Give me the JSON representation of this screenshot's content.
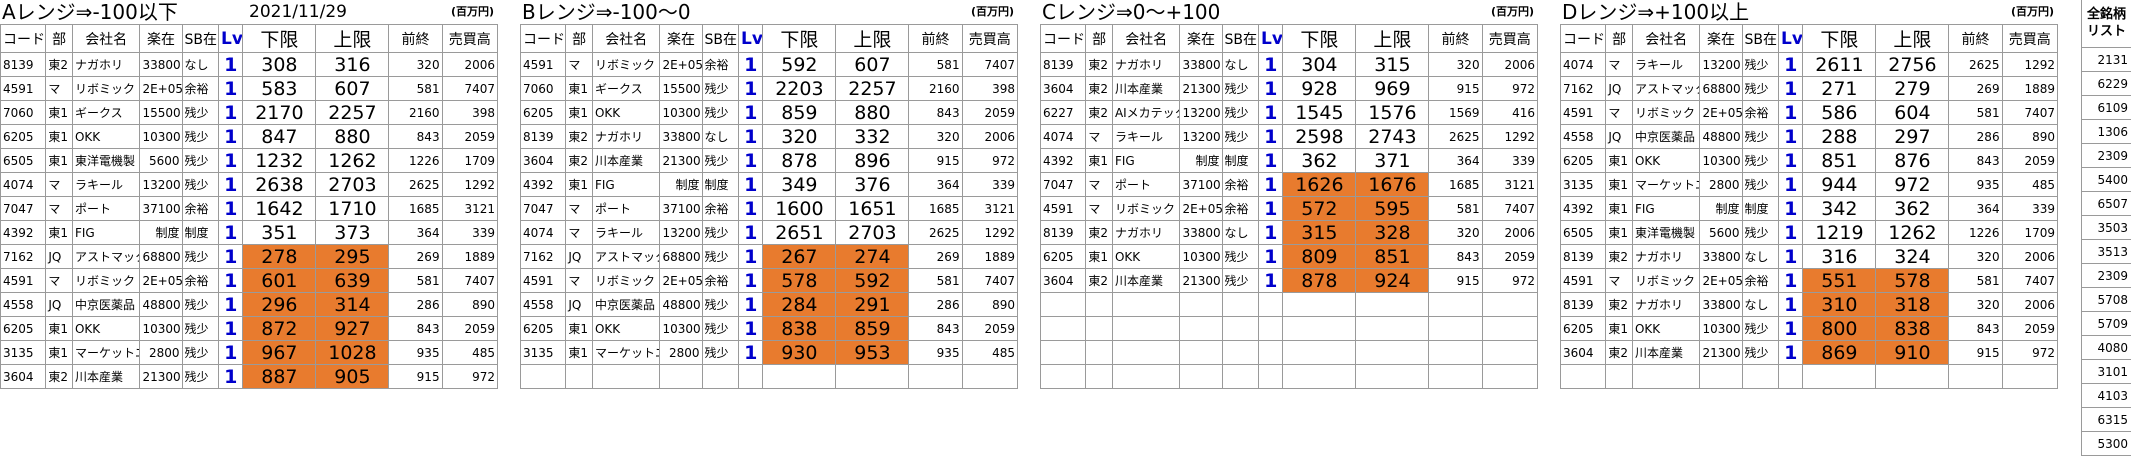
{
  "date": "2021/11/29",
  "unit_label": "(百万円)",
  "sidebar": {
    "header": "全銘柄リスト",
    "values": [
      "2131",
      "6229",
      "6109",
      "1306",
      "2309",
      "5400",
      "6507",
      "3503",
      "3513",
      "2309",
      "5708",
      "5709",
      "4080",
      "3101",
      "4103",
      "6315",
      "5300"
    ]
  },
  "headers": {
    "code": "コード",
    "market": "部",
    "company": "会社名",
    "lending": "楽在",
    "sb": "SB在",
    "lv": "Lv",
    "lower": "下限",
    "upper": "上限",
    "prev": "前終",
    "trade": "売買高"
  },
  "highlight_color": "#e87b2e",
  "lv_color": "#0000cc",
  "panels": [
    {
      "title": "Aレンジ⇒-100以下",
      "rows": [
        {
          "code": "8139",
          "market": "東2",
          "company": "ナガホリ",
          "lending": "33800",
          "sb": "なし",
          "lv": "1",
          "lower": "308",
          "upper": "316",
          "prev": "320",
          "trade": "2006",
          "hl": false
        },
        {
          "code": "4591",
          "market": "マ",
          "company": "リボミック",
          "lending": "2E+05",
          "sb": "余裕",
          "lv": "1",
          "lower": "583",
          "upper": "607",
          "prev": "581",
          "trade": "7407",
          "hl": false
        },
        {
          "code": "7060",
          "market": "東1",
          "company": "ギークス",
          "lending": "15500",
          "sb": "残少",
          "lv": "1",
          "lower": "2170",
          "upper": "2257",
          "prev": "2160",
          "trade": "398",
          "hl": false
        },
        {
          "code": "6205",
          "market": "東1",
          "company": "OKK",
          "lending": "10300",
          "sb": "残少",
          "lv": "1",
          "lower": "847",
          "upper": "880",
          "prev": "843",
          "trade": "2059",
          "hl": false
        },
        {
          "code": "6505",
          "market": "東1",
          "company": "東洋電機製",
          "lending": "5600",
          "sb": "残少",
          "lv": "1",
          "lower": "1232",
          "upper": "1262",
          "prev": "1226",
          "trade": "1709",
          "hl": false
        },
        {
          "code": "4074",
          "market": "マ",
          "company": "ラキール",
          "lending": "13200",
          "sb": "残少",
          "lv": "1",
          "lower": "2638",
          "upper": "2703",
          "prev": "2625",
          "trade": "1292",
          "hl": false
        },
        {
          "code": "7047",
          "market": "マ",
          "company": "ポート",
          "lending": "37100",
          "sb": "余裕",
          "lv": "1",
          "lower": "1642",
          "upper": "1710",
          "prev": "1685",
          "trade": "3121",
          "hl": false
        },
        {
          "code": "4392",
          "market": "東1",
          "company": "FIG",
          "lending": "制度",
          "sb": "制度",
          "lv": "1",
          "lower": "351",
          "upper": "373",
          "prev": "364",
          "trade": "339",
          "hl": false
        },
        {
          "code": "7162",
          "market": "JQ",
          "company": "アストマック",
          "lending": "68800",
          "sb": "残少",
          "lv": "1",
          "lower": "278",
          "upper": "295",
          "prev": "269",
          "trade": "1889",
          "hl": true
        },
        {
          "code": "4591",
          "market": "マ",
          "company": "リボミック",
          "lending": "2E+05",
          "sb": "余裕",
          "lv": "1",
          "lower": "601",
          "upper": "639",
          "prev": "581",
          "trade": "7407",
          "hl": true
        },
        {
          "code": "4558",
          "market": "JQ",
          "company": "中京医薬品",
          "lending": "48800",
          "sb": "残少",
          "lv": "1",
          "lower": "296",
          "upper": "314",
          "prev": "286",
          "trade": "890",
          "hl": true
        },
        {
          "code": "6205",
          "market": "東1",
          "company": "OKK",
          "lending": "10300",
          "sb": "残少",
          "lv": "1",
          "lower": "872",
          "upper": "927",
          "prev": "843",
          "trade": "2059",
          "hl": true
        },
        {
          "code": "3135",
          "market": "東1",
          "company": "マーケットエ",
          "lending": "2800",
          "sb": "残少",
          "lv": "1",
          "lower": "967",
          "upper": "1028",
          "prev": "935",
          "trade": "485",
          "hl": true
        },
        {
          "code": "3604",
          "market": "東2",
          "company": "川本産業",
          "lending": "21300",
          "sb": "残少",
          "lv": "1",
          "lower": "887",
          "upper": "905",
          "prev": "915",
          "trade": "972",
          "hl": true
        }
      ]
    },
    {
      "title": "Bレンジ⇒-100～0",
      "rows": [
        {
          "code": "4591",
          "market": "マ",
          "company": "リボミック",
          "lending": "2E+05",
          "sb": "余裕",
          "lv": "1",
          "lower": "592",
          "upper": "607",
          "prev": "581",
          "trade": "7407",
          "hl": false
        },
        {
          "code": "7060",
          "market": "東1",
          "company": "ギークス",
          "lending": "15500",
          "sb": "残少",
          "lv": "1",
          "lower": "2203",
          "upper": "2257",
          "prev": "2160",
          "trade": "398",
          "hl": false
        },
        {
          "code": "6205",
          "market": "東1",
          "company": "OKK",
          "lending": "10300",
          "sb": "残少",
          "lv": "1",
          "lower": "859",
          "upper": "880",
          "prev": "843",
          "trade": "2059",
          "hl": false
        },
        {
          "code": "8139",
          "market": "東2",
          "company": "ナガホリ",
          "lending": "33800",
          "sb": "なし",
          "lv": "1",
          "lower": "320",
          "upper": "332",
          "prev": "320",
          "trade": "2006",
          "hl": false
        },
        {
          "code": "3604",
          "market": "東2",
          "company": "川本産業",
          "lending": "21300",
          "sb": "残少",
          "lv": "1",
          "lower": "878",
          "upper": "896",
          "prev": "915",
          "trade": "972",
          "hl": false
        },
        {
          "code": "4392",
          "market": "東1",
          "company": "FIG",
          "lending": "制度",
          "sb": "制度",
          "lv": "1",
          "lower": "349",
          "upper": "376",
          "prev": "364",
          "trade": "339",
          "hl": false
        },
        {
          "code": "7047",
          "market": "マ",
          "company": "ポート",
          "lending": "37100",
          "sb": "余裕",
          "lv": "1",
          "lower": "1600",
          "upper": "1651",
          "prev": "1685",
          "trade": "3121",
          "hl": false
        },
        {
          "code": "4074",
          "market": "マ",
          "company": "ラキール",
          "lending": "13200",
          "sb": "残少",
          "lv": "1",
          "lower": "2651",
          "upper": "2703",
          "prev": "2625",
          "trade": "1292",
          "hl": false
        },
        {
          "code": "7162",
          "market": "JQ",
          "company": "アストマック",
          "lending": "68800",
          "sb": "残少",
          "lv": "1",
          "lower": "267",
          "upper": "274",
          "prev": "269",
          "trade": "1889",
          "hl": true
        },
        {
          "code": "4591",
          "market": "マ",
          "company": "リボミック",
          "lending": "2E+05",
          "sb": "余裕",
          "lv": "1",
          "lower": "578",
          "upper": "592",
          "prev": "581",
          "trade": "7407",
          "hl": true
        },
        {
          "code": "4558",
          "market": "JQ",
          "company": "中京医薬品",
          "lending": "48800",
          "sb": "残少",
          "lv": "1",
          "lower": "284",
          "upper": "291",
          "prev": "286",
          "trade": "890",
          "hl": true
        },
        {
          "code": "6205",
          "market": "東1",
          "company": "OKK",
          "lending": "10300",
          "sb": "残少",
          "lv": "1",
          "lower": "838",
          "upper": "859",
          "prev": "843",
          "trade": "2059",
          "hl": true
        },
        {
          "code": "3135",
          "market": "東1",
          "company": "マーケットエ",
          "lending": "2800",
          "sb": "残少",
          "lv": "1",
          "lower": "930",
          "upper": "953",
          "prev": "935",
          "trade": "485",
          "hl": true
        },
        {
          "code": "",
          "market": "",
          "company": "",
          "lending": "",
          "sb": "",
          "lv": "",
          "lower": "",
          "upper": "",
          "prev": "",
          "trade": "",
          "hl": false
        }
      ]
    },
    {
      "title": "Cレンジ⇒0～+100",
      "rows": [
        {
          "code": "8139",
          "market": "東2",
          "company": "ナガホリ",
          "lending": "33800",
          "sb": "なし",
          "lv": "1",
          "lower": "304",
          "upper": "315",
          "prev": "320",
          "trade": "2006",
          "hl": false
        },
        {
          "code": "3604",
          "market": "東2",
          "company": "川本産業",
          "lending": "21300",
          "sb": "残少",
          "lv": "1",
          "lower": "928",
          "upper": "969",
          "prev": "915",
          "trade": "972",
          "hl": false
        },
        {
          "code": "6227",
          "market": "東2",
          "company": "AIメカテック",
          "lending": "13200",
          "sb": "残少",
          "lv": "1",
          "lower": "1545",
          "upper": "1576",
          "prev": "1569",
          "trade": "416",
          "hl": false
        },
        {
          "code": "4074",
          "market": "マ",
          "company": "ラキール",
          "lending": "13200",
          "sb": "残少",
          "lv": "1",
          "lower": "2598",
          "upper": "2743",
          "prev": "2625",
          "trade": "1292",
          "hl": false
        },
        {
          "code": "4392",
          "market": "東1",
          "company": "FIG",
          "lending": "制度",
          "sb": "制度",
          "lv": "1",
          "lower": "362",
          "upper": "371",
          "prev": "364",
          "trade": "339",
          "hl": false
        },
        {
          "code": "7047",
          "market": "マ",
          "company": "ポート",
          "lending": "37100",
          "sb": "余裕",
          "lv": "1",
          "lower": "1626",
          "upper": "1676",
          "prev": "1685",
          "trade": "3121",
          "hl": true
        },
        {
          "code": "4591",
          "market": "マ",
          "company": "リボミック",
          "lending": "2E+05",
          "sb": "余裕",
          "lv": "1",
          "lower": "572",
          "upper": "595",
          "prev": "581",
          "trade": "7407",
          "hl": true
        },
        {
          "code": "8139",
          "market": "東2",
          "company": "ナガホリ",
          "lending": "33800",
          "sb": "なし",
          "lv": "1",
          "lower": "315",
          "upper": "328",
          "prev": "320",
          "trade": "2006",
          "hl": true
        },
        {
          "code": "6205",
          "market": "東1",
          "company": "OKK",
          "lending": "10300",
          "sb": "残少",
          "lv": "1",
          "lower": "809",
          "upper": "851",
          "prev": "843",
          "trade": "2059",
          "hl": true
        },
        {
          "code": "3604",
          "market": "東2",
          "company": "川本産業",
          "lending": "21300",
          "sb": "残少",
          "lv": "1",
          "lower": "878",
          "upper": "924",
          "prev": "915",
          "trade": "972",
          "hl": true
        },
        {
          "code": "",
          "market": "",
          "company": "",
          "lending": "",
          "sb": "",
          "lv": "",
          "lower": "",
          "upper": "",
          "prev": "",
          "trade": "",
          "hl": false
        },
        {
          "code": "",
          "market": "",
          "company": "",
          "lending": "",
          "sb": "",
          "lv": "",
          "lower": "",
          "upper": "",
          "prev": "",
          "trade": "",
          "hl": false
        },
        {
          "code": "",
          "market": "",
          "company": "",
          "lending": "",
          "sb": "",
          "lv": "",
          "lower": "",
          "upper": "",
          "prev": "",
          "trade": "",
          "hl": false
        },
        {
          "code": "",
          "market": "",
          "company": "",
          "lending": "",
          "sb": "",
          "lv": "",
          "lower": "",
          "upper": "",
          "prev": "",
          "trade": "",
          "hl": false
        }
      ]
    },
    {
      "title": "Dレンジ⇒+100以上",
      "rows": [
        {
          "code": "4074",
          "market": "マ",
          "company": "ラキール",
          "lending": "13200",
          "sb": "残少",
          "lv": "1",
          "lower": "2611",
          "upper": "2756",
          "prev": "2625",
          "trade": "1292",
          "hl": false
        },
        {
          "code": "7162",
          "market": "JQ",
          "company": "アストマック",
          "lending": "68800",
          "sb": "残少",
          "lv": "1",
          "lower": "271",
          "upper": "279",
          "prev": "269",
          "trade": "1889",
          "hl": false
        },
        {
          "code": "4591",
          "market": "マ",
          "company": "リボミック",
          "lending": "2E+05",
          "sb": "余裕",
          "lv": "1",
          "lower": "586",
          "upper": "604",
          "prev": "581",
          "trade": "7407",
          "hl": false
        },
        {
          "code": "4558",
          "market": "JQ",
          "company": "中京医薬品",
          "lending": "48800",
          "sb": "残少",
          "lv": "1",
          "lower": "288",
          "upper": "297",
          "prev": "286",
          "trade": "890",
          "hl": false
        },
        {
          "code": "6205",
          "market": "東1",
          "company": "OKK",
          "lending": "10300",
          "sb": "残少",
          "lv": "1",
          "lower": "851",
          "upper": "876",
          "prev": "843",
          "trade": "2059",
          "hl": false
        },
        {
          "code": "3135",
          "market": "東1",
          "company": "マーケットエ",
          "lending": "2800",
          "sb": "残少",
          "lv": "1",
          "lower": "944",
          "upper": "972",
          "prev": "935",
          "trade": "485",
          "hl": false
        },
        {
          "code": "4392",
          "market": "東1",
          "company": "FIG",
          "lending": "制度",
          "sb": "制度",
          "lv": "1",
          "lower": "342",
          "upper": "362",
          "prev": "364",
          "trade": "339",
          "hl": false
        },
        {
          "code": "6505",
          "market": "東1",
          "company": "東洋電機製",
          "lending": "5600",
          "sb": "残少",
          "lv": "1",
          "lower": "1219",
          "upper": "1262",
          "prev": "1226",
          "trade": "1709",
          "hl": false
        },
        {
          "code": "8139",
          "market": "東2",
          "company": "ナガホリ",
          "lending": "33800",
          "sb": "なし",
          "lv": "1",
          "lower": "316",
          "upper": "324",
          "prev": "320",
          "trade": "2006",
          "hl": false
        },
        {
          "code": "4591",
          "market": "マ",
          "company": "リボミック",
          "lending": "2E+05",
          "sb": "余裕",
          "lv": "1",
          "lower": "551",
          "upper": "578",
          "prev": "581",
          "trade": "7407",
          "hl": true
        },
        {
          "code": "8139",
          "market": "東2",
          "company": "ナガホリ",
          "lending": "33800",
          "sb": "なし",
          "lv": "1",
          "lower": "310",
          "upper": "318",
          "prev": "320",
          "trade": "2006",
          "hl": true
        },
        {
          "code": "6205",
          "market": "東1",
          "company": "OKK",
          "lending": "10300",
          "sb": "残少",
          "lv": "1",
          "lower": "800",
          "upper": "838",
          "prev": "843",
          "trade": "2059",
          "hl": true
        },
        {
          "code": "3604",
          "market": "東2",
          "company": "川本産業",
          "lending": "21300",
          "sb": "残少",
          "lv": "1",
          "lower": "869",
          "upper": "910",
          "prev": "915",
          "trade": "972",
          "hl": true
        },
        {
          "code": "",
          "market": "",
          "company": "",
          "lending": "",
          "sb": "",
          "lv": "",
          "lower": "",
          "upper": "",
          "prev": "",
          "trade": "",
          "hl": false
        }
      ]
    }
  ]
}
